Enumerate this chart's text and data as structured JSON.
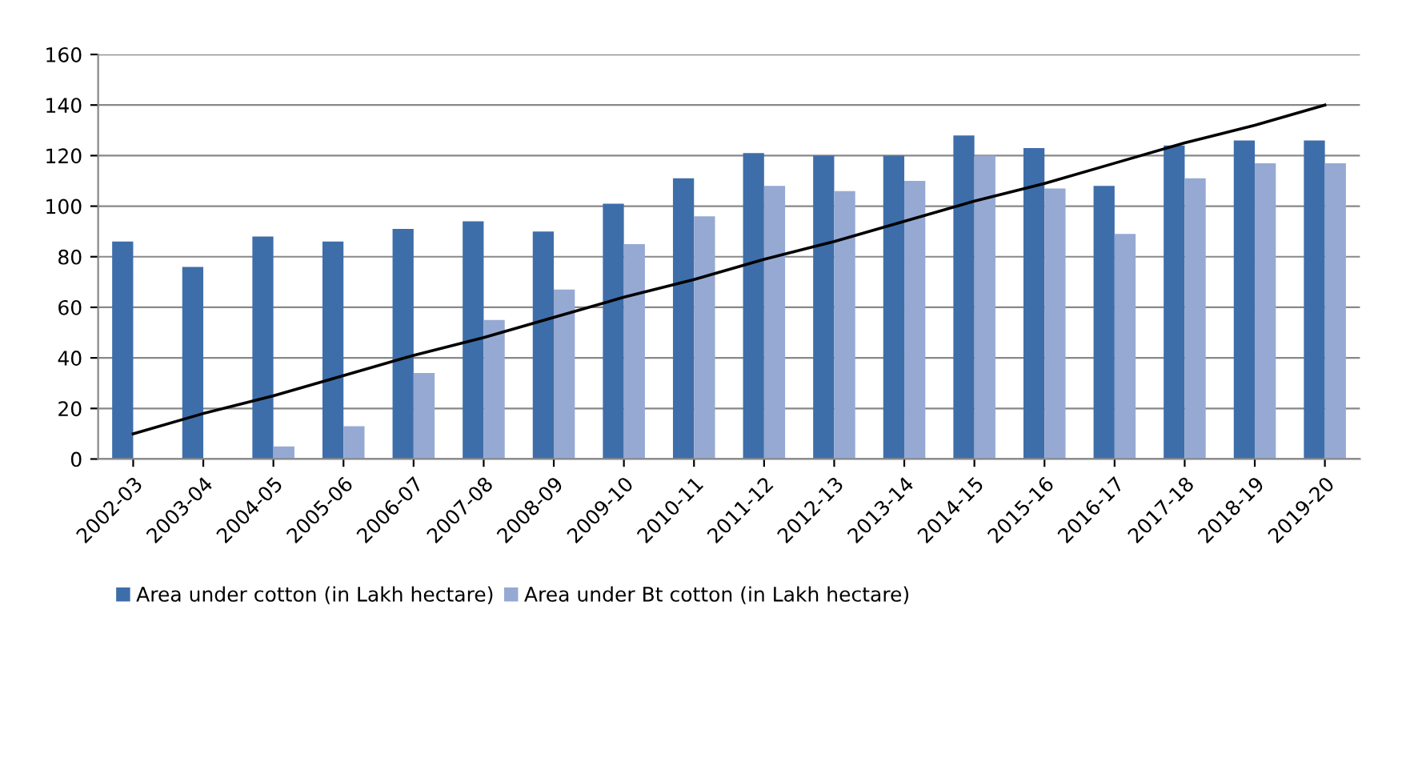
{
  "chart_data": {
    "type": "bar",
    "categories": [
      "2002-03",
      "2003-04",
      "2004-05",
      "2005-06",
      "2006-07",
      "2007-08",
      "2008-09",
      "2009-10",
      "2010-11",
      "2011-12",
      "2012-13",
      "2013-14",
      "2014-15",
      "2015-16",
      "2016-17",
      "2017-18",
      "2018-19",
      "2019-20"
    ],
    "series": [
      {
        "name": "Area under cotton (in Lakh hectare)",
        "color": "#3e6ea9",
        "values": [
          86,
          76,
          88,
          86,
          91,
          94,
          90,
          101,
          111,
          121,
          120,
          120,
          128,
          123,
          108,
          124,
          126,
          126
        ]
      },
      {
        "name": "Area under Bt cotton (in Lakh hectare)",
        "color": "#95a9d3",
        "values": [
          null,
          null,
          5,
          13,
          34,
          55,
          67,
          85,
          96,
          108,
          106,
          110,
          120,
          107,
          89,
          111,
          117,
          117
        ]
      },
      {
        "type": "line",
        "color": "#000000",
        "values": [
          10,
          18,
          25,
          33,
          41,
          48,
          56,
          64,
          71,
          79,
          86,
          94,
          102,
          109,
          117,
          125,
          132,
          140
        ]
      }
    ],
    "ylim": [
      0,
      160
    ],
    "yticks": [
      0,
      20,
      40,
      60,
      80,
      100,
      120,
      140,
      160
    ],
    "grid": "y",
    "legend": "bottom"
  }
}
